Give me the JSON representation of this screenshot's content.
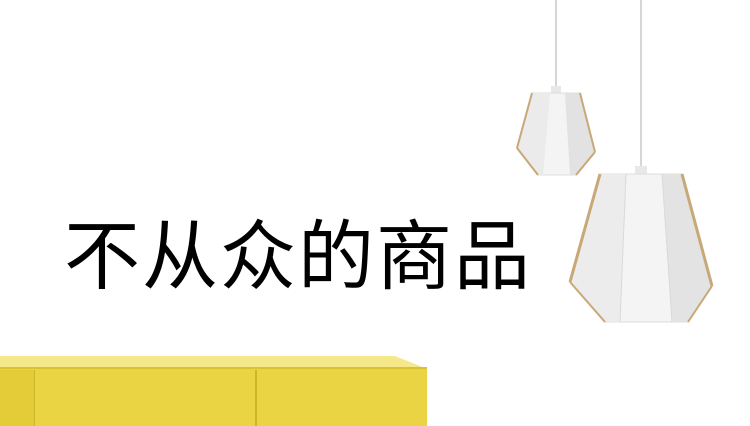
{
  "banner": {
    "headline": "不从众的商品"
  },
  "colors": {
    "background": "#ffffff",
    "headline": "#000000",
    "cabinet_front": "#ead443",
    "cabinet_top": "#f5e88a",
    "lamp_shade": "#f4f4f4",
    "lamp_edge": "#c9a877"
  },
  "icons": {
    "small_lamp": "pendant-lamp-small-icon",
    "large_lamp": "pendant-lamp-large-icon",
    "cabinet": "yellow-cabinet-icon"
  }
}
